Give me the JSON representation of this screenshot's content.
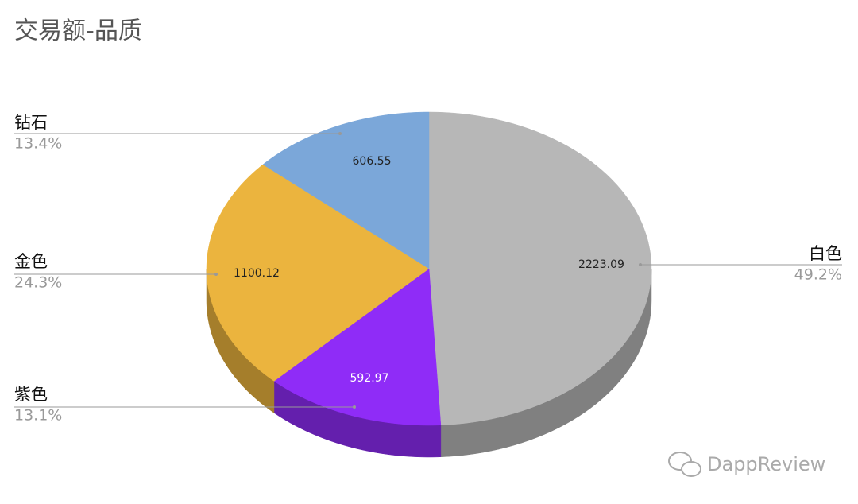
{
  "chart_data": {
    "type": "pie3d",
    "title": "交易额-品质",
    "categories": [
      "白色",
      "紫色",
      "金色",
      "钻石"
    ],
    "values": [
      2223.09,
      592.97,
      1100.12,
      606.55
    ],
    "percent_labels": [
      "49.2%",
      "13.1%",
      "24.3%",
      "13.4%"
    ],
    "colors": [
      "#b7b7b7",
      "#8f2cf7",
      "#ebb43e",
      "#7ba7d9"
    ],
    "value_label_colors": [
      "#222222",
      "#ffffff",
      "#222222",
      "#222222"
    ]
  },
  "watermark": "DappReview"
}
